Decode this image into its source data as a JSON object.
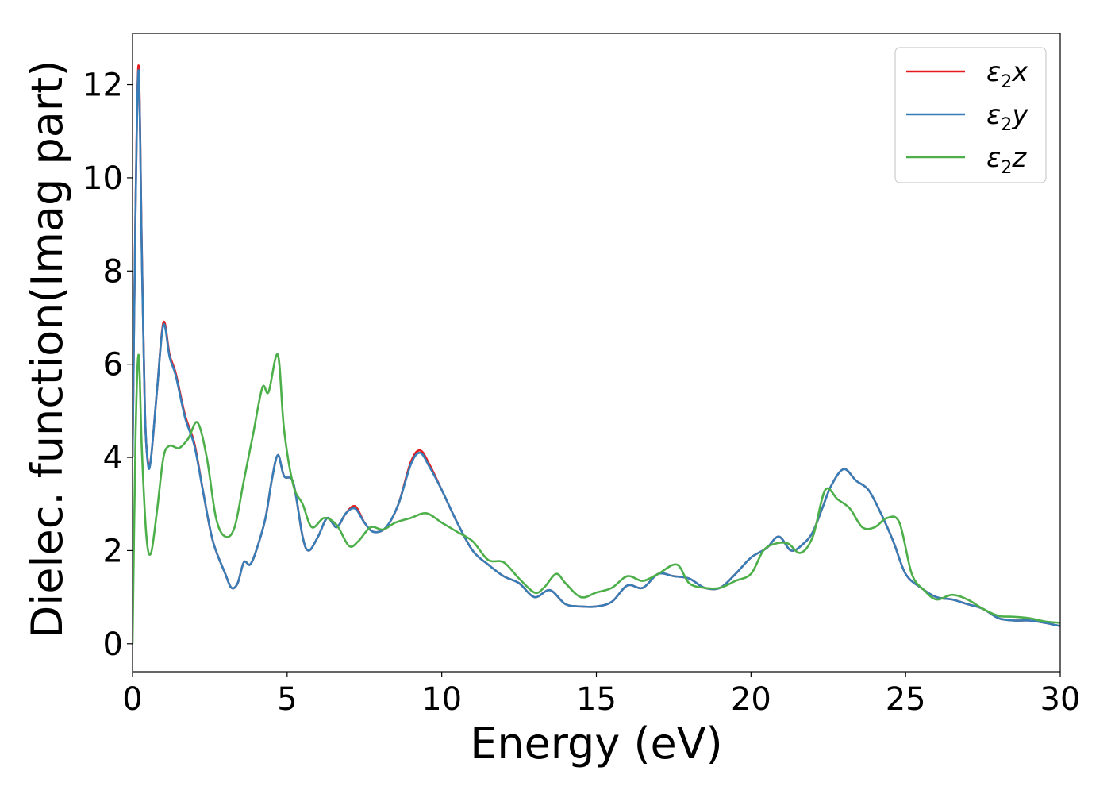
{
  "chart_data": {
    "type": "line",
    "title": "",
    "xlabel": "Energy (eV)",
    "ylabel": "Dielec. function(Imag part)",
    "xlim": [
      0,
      30
    ],
    "ylim": [
      -0.6,
      13.1
    ],
    "xticks": [
      0,
      5,
      10,
      15,
      20,
      25,
      30
    ],
    "xtick_labels": [
      "0",
      "5",
      "10",
      "15",
      "20",
      "25",
      "30"
    ],
    "yticks": [
      0,
      2,
      4,
      6,
      8,
      10,
      12
    ],
    "ytick_labels": [
      "0",
      "2",
      "4",
      "6",
      "8",
      "10",
      "12"
    ],
    "grid": false,
    "legend_position": "top-right",
    "series": [
      {
        "name": "ε2x",
        "legend_symbol": "ε",
        "legend_subscript": "2",
        "legend_suffix": "x",
        "color": "#e41a1c",
        "x": [
          0.0,
          0.1,
          0.2,
          0.3,
          0.4,
          0.5,
          0.6,
          0.8,
          1.0,
          1.2,
          1.4,
          1.7,
          2.0,
          2.3,
          2.6,
          3.0,
          3.2,
          3.4,
          3.6,
          3.8,
          4.0,
          4.3,
          4.5,
          4.7,
          4.9,
          5.2,
          5.5,
          5.7,
          6.0,
          6.3,
          6.6,
          6.9,
          7.2,
          7.5,
          7.8,
          8.2,
          8.6,
          9.0,
          9.3,
          9.6,
          10.0,
          10.5,
          11.0,
          11.5,
          12.0,
          12.5,
          13.0,
          13.5,
          14.0,
          14.5,
          15.0,
          15.5,
          16.0,
          16.5,
          17.0,
          17.5,
          18.0,
          18.5,
          19.0,
          19.5,
          20.0,
          20.5,
          20.9,
          21.3,
          21.7,
          22.0,
          22.3,
          22.6,
          23.0,
          23.4,
          23.8,
          24.2,
          24.6,
          25.0,
          25.5,
          26.0,
          26.5,
          27.0,
          27.5,
          28.0,
          28.5,
          29.0,
          29.5,
          30.0
        ],
        "y": [
          4.0,
          9.5,
          12.4,
          8.5,
          5.0,
          3.9,
          4.0,
          5.5,
          6.9,
          6.2,
          5.8,
          4.9,
          4.3,
          3.2,
          2.2,
          1.5,
          1.2,
          1.3,
          1.75,
          1.7,
          2.0,
          2.7,
          3.5,
          4.05,
          3.6,
          3.45,
          2.3,
          2.0,
          2.3,
          2.7,
          2.5,
          2.8,
          2.95,
          2.6,
          2.4,
          2.5,
          3.0,
          3.9,
          4.15,
          3.85,
          3.3,
          2.6,
          2.0,
          1.7,
          1.45,
          1.3,
          1.0,
          1.15,
          0.85,
          0.8,
          0.8,
          0.9,
          1.25,
          1.2,
          1.5,
          1.45,
          1.4,
          1.2,
          1.2,
          1.5,
          1.85,
          2.05,
          2.3,
          2.0,
          2.15,
          2.4,
          2.9,
          3.4,
          3.75,
          3.5,
          3.3,
          2.8,
          2.2,
          1.5,
          1.2,
          1.0,
          0.95,
          0.85,
          0.75,
          0.55,
          0.5,
          0.5,
          0.45,
          0.38
        ]
      },
      {
        "name": "ε2y",
        "legend_symbol": "ε",
        "legend_subscript": "2",
        "legend_suffix": "y",
        "color": "#377eb8",
        "x": [
          0.0,
          0.1,
          0.2,
          0.3,
          0.4,
          0.5,
          0.6,
          0.8,
          1.0,
          1.2,
          1.4,
          1.7,
          2.0,
          2.3,
          2.6,
          3.0,
          3.2,
          3.4,
          3.6,
          3.8,
          4.0,
          4.3,
          4.5,
          4.7,
          4.9,
          5.2,
          5.5,
          5.7,
          6.0,
          6.3,
          6.6,
          6.9,
          7.2,
          7.5,
          7.8,
          8.2,
          8.6,
          9.0,
          9.3,
          9.6,
          10.0,
          10.5,
          11.0,
          11.5,
          12.0,
          12.5,
          13.0,
          13.5,
          14.0,
          14.5,
          15.0,
          15.5,
          16.0,
          16.5,
          17.0,
          17.5,
          18.0,
          18.5,
          19.0,
          19.5,
          20.0,
          20.5,
          20.9,
          21.3,
          21.7,
          22.0,
          22.3,
          22.6,
          23.0,
          23.4,
          23.8,
          24.2,
          24.6,
          25.0,
          25.5,
          26.0,
          26.5,
          27.0,
          27.5,
          28.0,
          28.5,
          29.0,
          29.5,
          30.0
        ],
        "y": [
          4.0,
          9.4,
          12.3,
          8.4,
          5.0,
          3.85,
          4.0,
          5.5,
          6.85,
          6.15,
          5.75,
          4.85,
          4.25,
          3.2,
          2.2,
          1.5,
          1.2,
          1.3,
          1.75,
          1.7,
          2.0,
          2.7,
          3.5,
          4.05,
          3.6,
          3.45,
          2.3,
          2.0,
          2.3,
          2.7,
          2.5,
          2.8,
          2.9,
          2.6,
          2.4,
          2.5,
          3.0,
          3.85,
          4.1,
          3.8,
          3.3,
          2.6,
          2.0,
          1.7,
          1.45,
          1.3,
          1.0,
          1.15,
          0.85,
          0.8,
          0.8,
          0.9,
          1.25,
          1.2,
          1.5,
          1.45,
          1.4,
          1.2,
          1.2,
          1.5,
          1.85,
          2.05,
          2.3,
          2.0,
          2.15,
          2.4,
          2.9,
          3.4,
          3.75,
          3.5,
          3.3,
          2.8,
          2.2,
          1.5,
          1.2,
          1.0,
          0.95,
          0.85,
          0.75,
          0.55,
          0.5,
          0.5,
          0.45,
          0.38
        ]
      },
      {
        "name": "ε2z",
        "legend_symbol": "ε",
        "legend_subscript": "2",
        "legend_suffix": "z",
        "color": "#4daf4a",
        "x": [
          0.0,
          0.1,
          0.2,
          0.3,
          0.45,
          0.6,
          0.8,
          1.0,
          1.2,
          1.5,
          1.8,
          2.1,
          2.4,
          2.7,
          3.0,
          3.3,
          3.6,
          3.9,
          4.2,
          4.4,
          4.7,
          4.9,
          5.2,
          5.5,
          5.8,
          6.2,
          6.6,
          7.0,
          7.3,
          7.7,
          8.1,
          8.5,
          9.0,
          9.5,
          10.0,
          10.5,
          11.0,
          11.5,
          12.0,
          12.5,
          13.0,
          13.3,
          13.7,
          14.0,
          14.5,
          15.0,
          15.5,
          16.0,
          16.5,
          17.0,
          17.6,
          18.0,
          18.5,
          19.0,
          19.5,
          20.0,
          20.4,
          20.8,
          21.2,
          21.6,
          22.0,
          22.4,
          22.8,
          23.2,
          23.6,
          24.0,
          24.4,
          24.8,
          25.2,
          25.6,
          26.0,
          26.5,
          27.0,
          27.5,
          28.0,
          28.5,
          29.0,
          29.5,
          30.0
        ],
        "y": [
          0.0,
          4.5,
          6.2,
          4.2,
          2.3,
          1.95,
          2.9,
          4.0,
          4.25,
          4.2,
          4.4,
          4.75,
          4.0,
          2.7,
          2.3,
          2.5,
          3.5,
          4.5,
          5.5,
          5.4,
          6.2,
          4.6,
          3.4,
          3.0,
          2.5,
          2.7,
          2.55,
          2.1,
          2.2,
          2.5,
          2.45,
          2.6,
          2.7,
          2.8,
          2.6,
          2.4,
          2.2,
          1.8,
          1.75,
          1.4,
          1.1,
          1.2,
          1.5,
          1.3,
          1.0,
          1.1,
          1.2,
          1.45,
          1.35,
          1.5,
          1.7,
          1.3,
          1.2,
          1.2,
          1.35,
          1.5,
          2.0,
          2.15,
          2.15,
          1.95,
          2.3,
          3.3,
          3.1,
          2.9,
          2.5,
          2.5,
          2.7,
          2.6,
          1.5,
          1.15,
          0.95,
          1.05,
          0.95,
          0.75,
          0.6,
          0.58,
          0.55,
          0.48,
          0.45
        ]
      }
    ]
  }
}
